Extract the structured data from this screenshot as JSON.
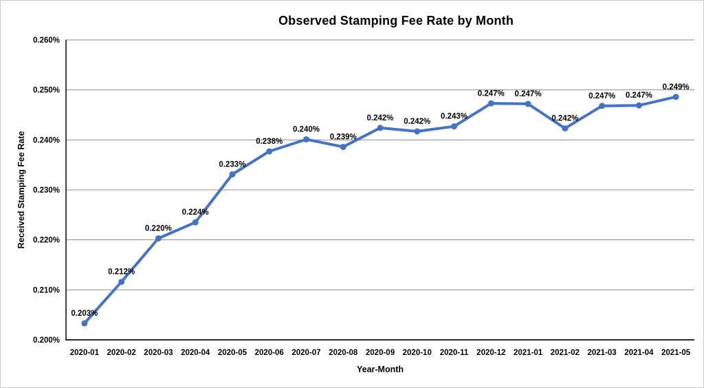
{
  "chart_data": {
    "type": "line",
    "title": "Observed Stamping Fee Rate by Month",
    "xlabel": "Year-Month",
    "ylabel": "Received Stamping Fee Rate",
    "categories": [
      "2020-01",
      "2020-02",
      "2020-03",
      "2020-04",
      "2020-05",
      "2020-06",
      "2020-07",
      "2020-08",
      "2020-09",
      "2020-10",
      "2020-11",
      "2020-12",
      "2021-01",
      "2021-02",
      "2021-03",
      "2021-04",
      "2021-05"
    ],
    "values": [
      0.2033,
      0.2116,
      0.2203,
      0.2235,
      0.2331,
      0.2377,
      0.2401,
      0.2386,
      0.2424,
      0.2417,
      0.2427,
      0.2473,
      0.2472,
      0.2423,
      0.2468,
      0.2469,
      0.2486
    ],
    "data_labels": [
      "0.203%",
      "0.212%",
      "0.220%",
      "0.224%",
      "0.233%",
      "0.238%",
      "0.240%",
      "0.239%",
      "0.242%",
      "0.242%",
      "0.243%",
      "0.247%",
      "0.247%",
      "0.242%",
      "0.247%",
      "0.247%",
      "0.249%"
    ],
    "y_ticks": [
      "0.260%",
      "0.250%",
      "0.240%",
      "0.230%",
      "0.220%",
      "0.210%",
      "0.200%"
    ],
    "ylim": [
      0.2,
      0.26
    ],
    "y_tick_step": 0.01,
    "grid": true,
    "legend": "none",
    "line_color": "#4472C4",
    "marker": "circle",
    "gridline_color": "#8c8c8c",
    "axis_color": "#2b2b2b",
    "text_color": "#000000"
  }
}
